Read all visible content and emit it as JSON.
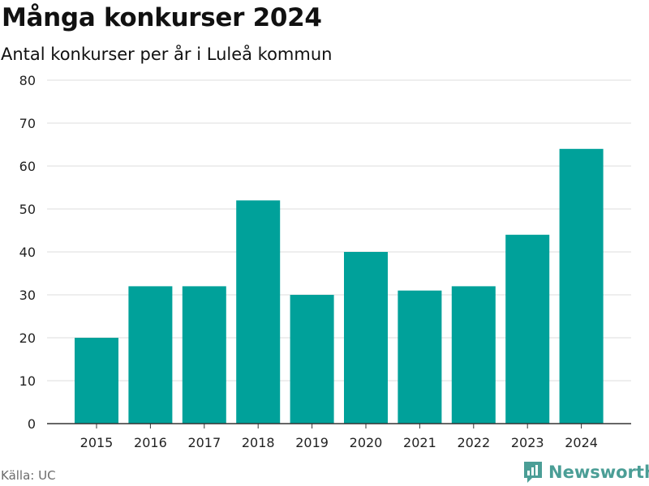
{
  "title": "Många konkurser 2024",
  "subtitle": "Antal konkurser per år i Luleå kommun",
  "source": "Källa: UC",
  "brand": {
    "name": "Newsworthy",
    "icon": "newsworthy-logo-icon",
    "color": "#4b9e96"
  },
  "colors": {
    "bar": "#00a19a",
    "grid": "#dddddd",
    "axis": "#333333"
  },
  "chart_data": {
    "type": "bar",
    "title": "Många konkurser 2024",
    "subtitle": "Antal konkurser per år i Luleå kommun",
    "xlabel": "",
    "ylabel": "",
    "categories": [
      "2015",
      "2016",
      "2017",
      "2018",
      "2019",
      "2020",
      "2021",
      "2022",
      "2023",
      "2024"
    ],
    "values": [
      20,
      32,
      32,
      52,
      30,
      40,
      31,
      32,
      44,
      64
    ],
    "ylim": [
      0,
      80
    ],
    "yticks": [
      0,
      10,
      20,
      30,
      40,
      50,
      60,
      70,
      80
    ],
    "grid": true,
    "legend": "none"
  }
}
